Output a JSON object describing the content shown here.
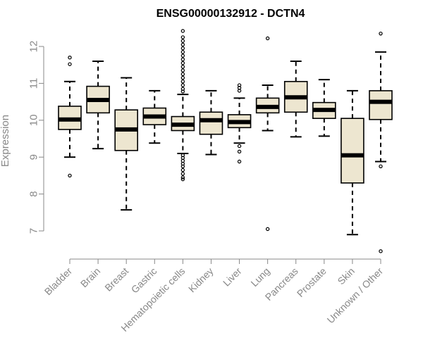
{
  "chart_data": {
    "type": "boxplot",
    "title": "ENSG00000132912 - DCTN4",
    "ylabel": "Expression",
    "xlabel": "",
    "ylim": [
      6.6,
      12.4
    ],
    "yticks": [
      "7",
      "8",
      "9",
      "10",
      "11",
      "12"
    ],
    "box_fill": "#ede6d0",
    "categories": [
      "Bladder",
      "Brain",
      "Breast",
      "Gastric",
      "Hematopoietic cells",
      "Kidney",
      "Liver",
      "Lung",
      "Pancreas",
      "Prostate",
      "Skin",
      "Unknown / Other"
    ],
    "boxes": [
      {
        "category": "Bladder",
        "whisker_low": 9.0,
        "q1": 9.75,
        "median": 10.02,
        "q3": 10.38,
        "whisker_high": 11.05,
        "outliers": [
          11.7,
          11.52,
          8.5
        ]
      },
      {
        "category": "Brain",
        "whisker_low": 9.23,
        "q1": 10.2,
        "median": 10.55,
        "q3": 10.92,
        "whisker_high": 11.6,
        "outliers": []
      },
      {
        "category": "Breast",
        "whisker_low": 7.57,
        "q1": 9.18,
        "median": 9.75,
        "q3": 10.28,
        "whisker_high": 11.15,
        "outliers": []
      },
      {
        "category": "Gastric",
        "whisker_low": 9.38,
        "q1": 9.88,
        "median": 10.1,
        "q3": 10.33,
        "whisker_high": 10.8,
        "outliers": []
      },
      {
        "category": "Hematopoietic cells",
        "whisker_low": 9.1,
        "q1": 9.72,
        "median": 9.88,
        "q3": 10.1,
        "whisker_high": 10.7,
        "outliers": [
          12.42,
          12.25,
          12.15,
          12.05,
          11.95,
          11.85,
          11.75,
          11.65,
          11.55,
          11.45,
          11.35,
          11.25,
          11.15,
          11.05,
          10.95,
          10.85,
          10.78,
          9.05,
          8.98,
          8.9,
          8.82,
          8.75,
          8.65,
          8.55,
          8.45,
          8.4
        ]
      },
      {
        "category": "Kidney",
        "whisker_low": 9.07,
        "q1": 9.62,
        "median": 10.0,
        "q3": 10.22,
        "whisker_high": 10.8,
        "outliers": []
      },
      {
        "category": "Liver",
        "whisker_low": 9.38,
        "q1": 9.8,
        "median": 9.95,
        "q3": 10.15,
        "whisker_high": 10.6,
        "outliers": [
          10.95,
          10.88,
          10.8,
          9.3,
          9.15,
          8.88
        ]
      },
      {
        "category": "Lung",
        "whisker_low": 9.72,
        "q1": 10.2,
        "median": 10.36,
        "q3": 10.6,
        "whisker_high": 10.95,
        "outliers": [
          12.22,
          7.05
        ]
      },
      {
        "category": "Pancreas",
        "whisker_low": 9.55,
        "q1": 10.22,
        "median": 10.62,
        "q3": 11.05,
        "whisker_high": 11.6,
        "outliers": []
      },
      {
        "category": "Prostate",
        "whisker_low": 9.57,
        "q1": 10.05,
        "median": 10.28,
        "q3": 10.48,
        "whisker_high": 11.1,
        "outliers": []
      },
      {
        "category": "Skin",
        "whisker_low": 6.9,
        "q1": 8.3,
        "median": 9.05,
        "q3": 10.05,
        "whisker_high": 10.8,
        "outliers": []
      },
      {
        "category": "Unknown / Other",
        "whisker_low": 8.88,
        "q1": 10.02,
        "median": 10.5,
        "q3": 10.8,
        "whisker_high": 11.85,
        "outliers": [
          12.35,
          8.75,
          6.45
        ]
      }
    ]
  }
}
